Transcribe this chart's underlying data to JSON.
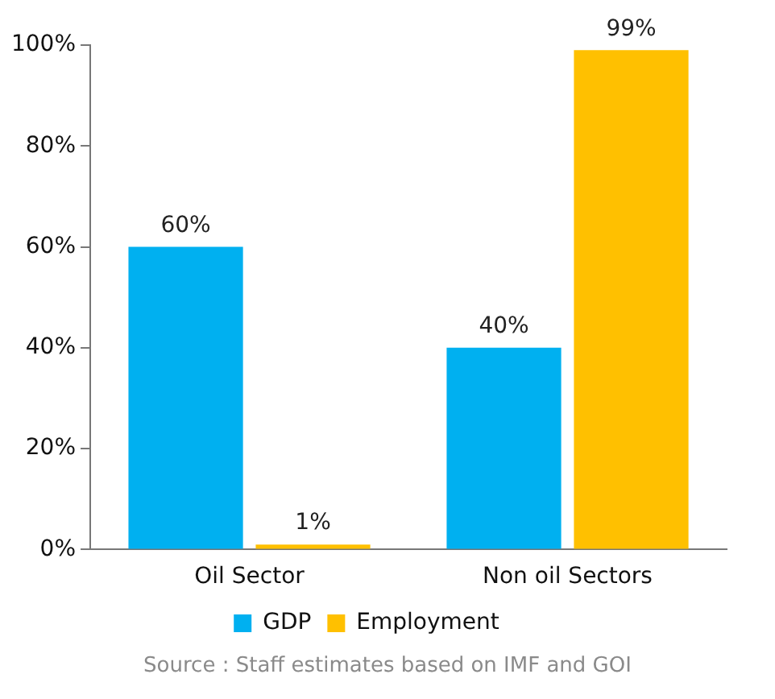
{
  "chart_data": {
    "type": "bar",
    "categories": [
      "Oil Sector",
      "Non oil Sectors"
    ],
    "series": [
      {
        "name": "GDP",
        "color": "#00b0f0",
        "values": [
          60,
          40
        ],
        "value_labels": [
          "60%",
          "40%"
        ]
      },
      {
        "name": "Employment",
        "color": "#ffc000",
        "values": [
          1,
          99
        ],
        "value_labels": [
          "1%",
          "99%"
        ]
      }
    ],
    "ylim": [
      0,
      100
    ],
    "yticks": [
      {
        "value": 0,
        "label": "0%"
      },
      {
        "value": 20,
        "label": "20%"
      },
      {
        "value": 40,
        "label": "40%"
      },
      {
        "value": 60,
        "label": "60%"
      },
      {
        "value": 80,
        "label": "80%"
      },
      {
        "value": 100,
        "label": "100%"
      }
    ],
    "grid": false,
    "legend": "bottom",
    "annotations": [
      "Source : Staff estimates based on IMF and GOI"
    ]
  }
}
